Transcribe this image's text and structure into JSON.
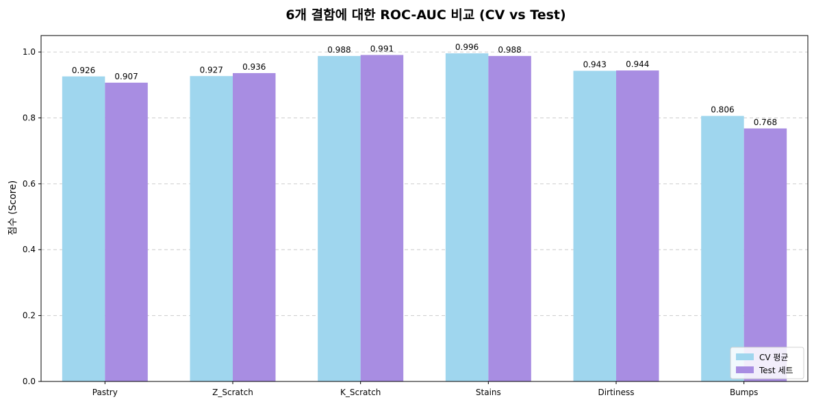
{
  "colors": {
    "cv": "#9fd6ee",
    "test": "#a88de2",
    "grid": "#cccccc",
    "axis": "#000000"
  },
  "chart_data": {
    "type": "bar",
    "title": "6개 결함에 대한 ROC-AUC 비교 (CV vs Test)",
    "xlabel": "",
    "ylabel": "점수 (Score)",
    "categories": [
      "Pastry",
      "Z_Scratch",
      "K_Scratch",
      "Stains",
      "Dirtiness",
      "Bumps"
    ],
    "series": [
      {
        "name": "CV 평균",
        "values": [
          0.926,
          0.927,
          0.988,
          0.996,
          0.943,
          0.806
        ]
      },
      {
        "name": "Test 세트",
        "values": [
          0.907,
          0.936,
          0.991,
          0.988,
          0.944,
          0.768
        ]
      }
    ],
    "ylim": [
      0,
      1.05
    ],
    "yticks": [
      "0.0",
      "0.2",
      "0.4",
      "0.6",
      "0.8",
      "1.0"
    ],
    "grid": true,
    "legend_position": "bottom-right"
  }
}
